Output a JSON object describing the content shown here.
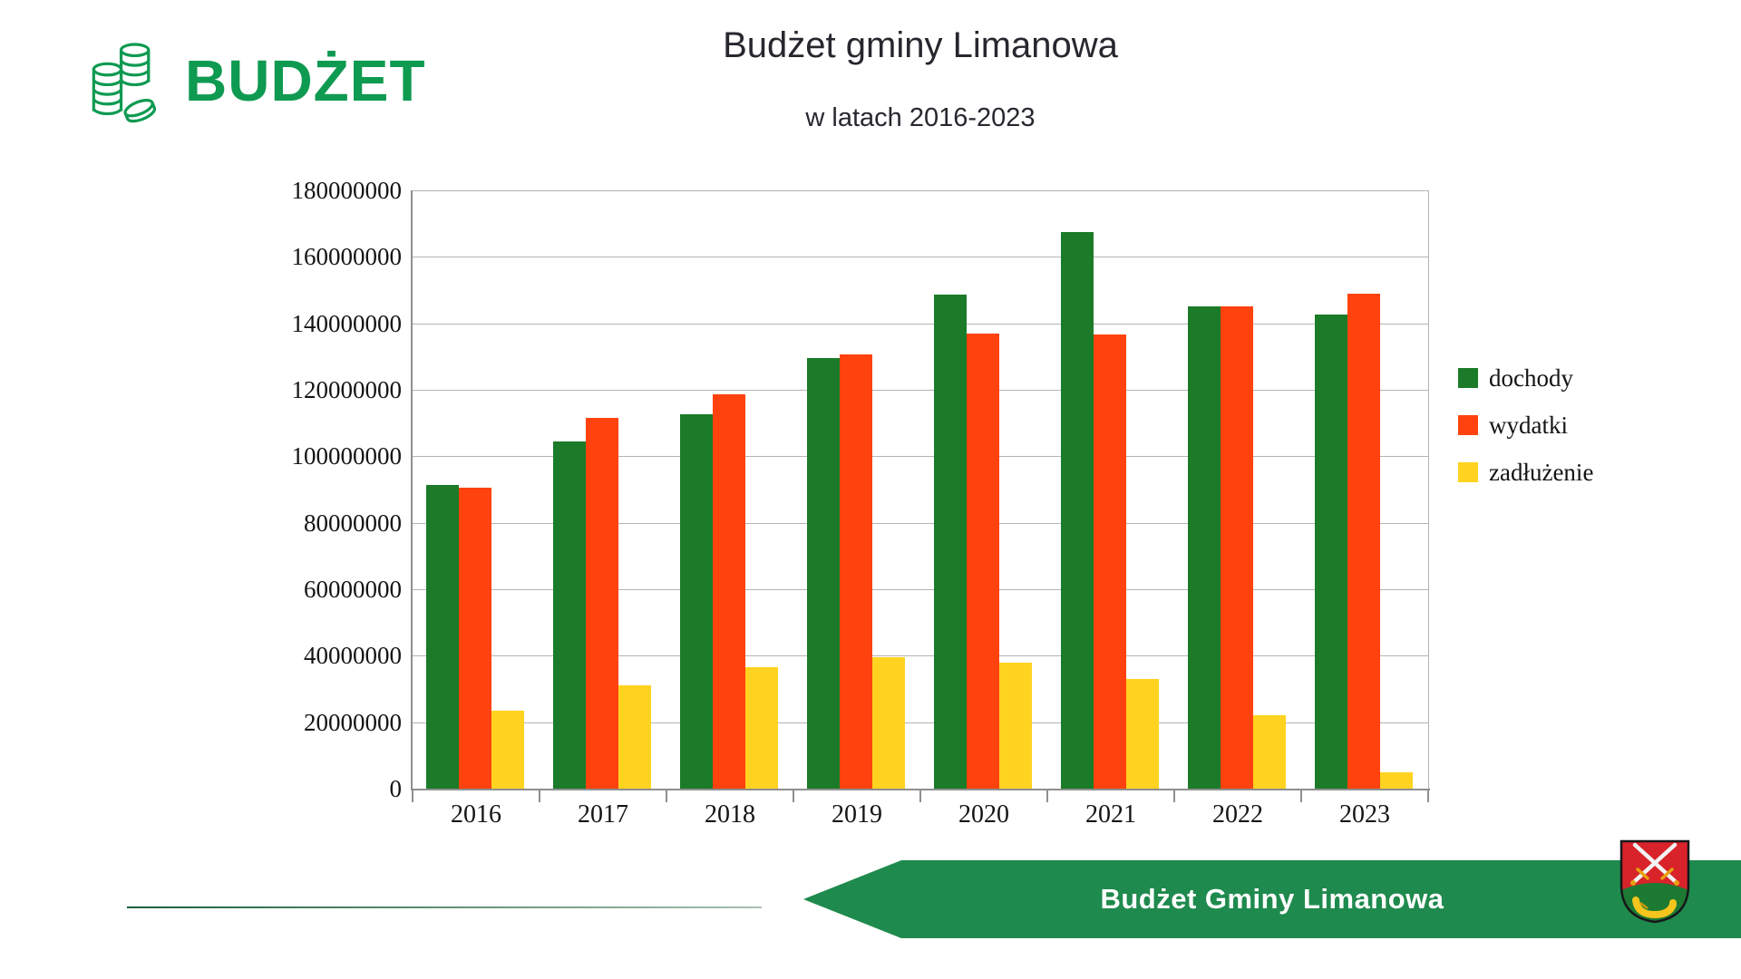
{
  "logo": {
    "text": "BUDŻET",
    "color": "#0f9a51",
    "icon": "coins-icon"
  },
  "chart_data": {
    "type": "bar",
    "title": "Budżet gminy Limanowa",
    "subtitle": "w latach 2016-2023",
    "categories": [
      "2016",
      "2017",
      "2018",
      "2019",
      "2020",
      "2021",
      "2022",
      "2023"
    ],
    "series": [
      {
        "name": "dochody",
        "color": "#1b7b28",
        "values": [
          91400000,
          104500000,
          112500000,
          129500000,
          148500000,
          167500000,
          145000000,
          142500000
        ]
      },
      {
        "name": "wydatki",
        "color": "#ff420e",
        "values": [
          90500000,
          111500000,
          118500000,
          130500000,
          137000000,
          136500000,
          145200000,
          149000000
        ]
      },
      {
        "name": "zadłużenie",
        "color": "#ffd320",
        "values": [
          23500000,
          31000000,
          36500000,
          39500000,
          38000000,
          33000000,
          22000000,
          5000000
        ]
      }
    ],
    "ylim": [
      0,
      180000000
    ],
    "ytick_step": 20000000,
    "ytick_labels": [
      "180000000",
      "160000000",
      "140000000",
      "120000000",
      "100000000",
      "80000000",
      "60000000",
      "40000000",
      "20000000",
      "0"
    ],
    "grid": true,
    "legend_position": "right"
  },
  "footer": {
    "banner_text": "Budżet Gminy Limanowa",
    "banner_color": "#1f8a4d",
    "crest": "limanowa-coat-of-arms"
  }
}
